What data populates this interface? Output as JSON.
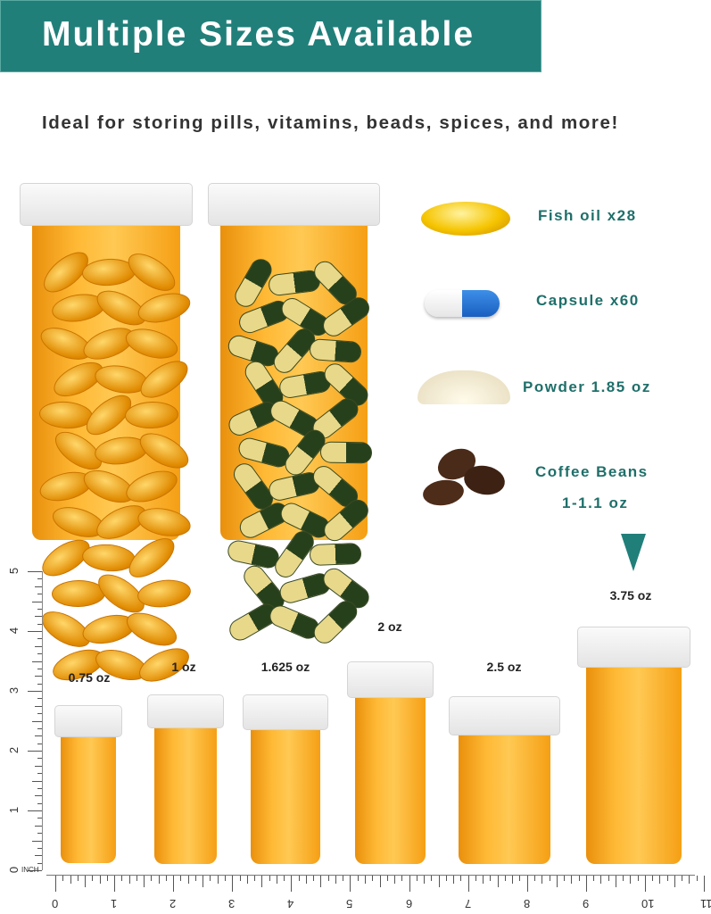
{
  "banner": {
    "title": "Multiple Sizes Available",
    "color": "#217f7a"
  },
  "subtitle": "Ideal for storing pills, vitamins, beads, spices, and more!",
  "capacities": [
    {
      "icon": "fish-oil-softgel-icon",
      "label": "Fish oil  x28"
    },
    {
      "icon": "capsule-icon",
      "label": "Capsule  x60"
    },
    {
      "icon": "powder-icon",
      "label": "Powder  1.85 oz"
    },
    {
      "icon": "coffee-beans-icon",
      "label": "Coffee Beans",
      "label2": "1-1.1 oz"
    }
  ],
  "sizes": [
    "0.75 oz",
    "1 oz",
    "1.625 oz",
    "2 oz",
    "2.5 oz",
    "3.75 oz"
  ],
  "ruler": {
    "unit": "INCH",
    "vertical_numbers": [
      "0",
      "1",
      "2",
      "3",
      "4",
      "5"
    ],
    "horizontal_numbers": [
      "0",
      "1",
      "2",
      "3",
      "4",
      "5",
      "6",
      "7",
      "8",
      "9",
      "10",
      "11"
    ]
  },
  "colors": {
    "amber": "#f5a20c",
    "teal": "#217f7a",
    "accent_text": "#1f6f6a"
  }
}
